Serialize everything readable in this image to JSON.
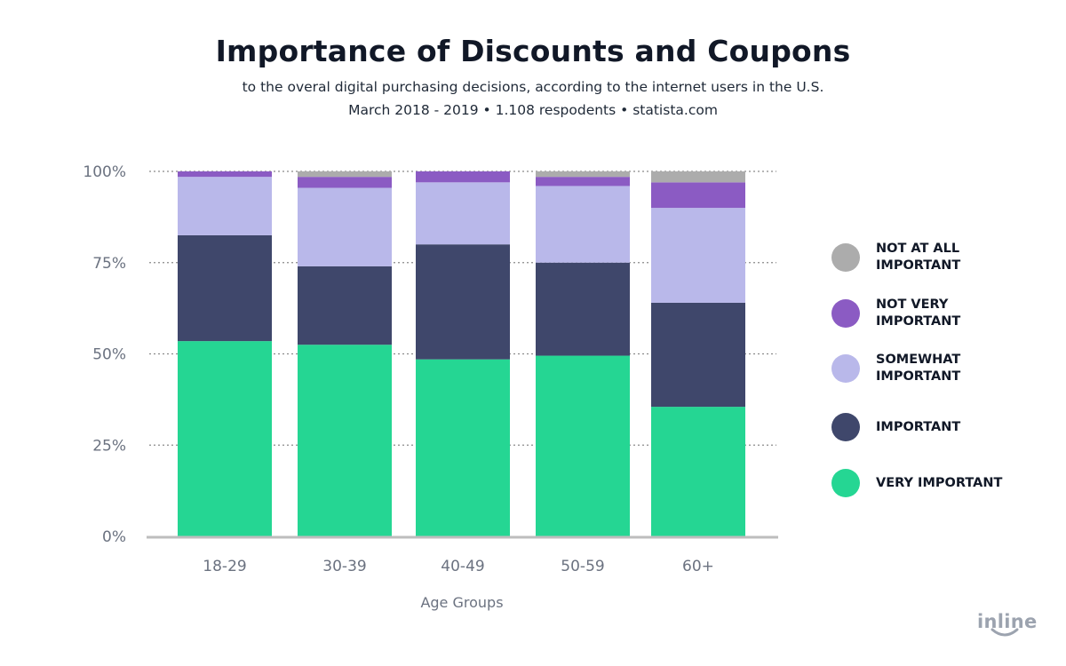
{
  "header": {
    "title": "Importance of Discounts and Coupons",
    "subtitle": "to the overal digital purchasing decisions, according to the internet users in the U.S.",
    "source": "March 2018 - 2019 • 1.108 respodents • statista.com"
  },
  "logo": {
    "text": "inline"
  },
  "colors": {
    "not_at_all_important": "#acacac",
    "not_very_important": "#8b5bc3",
    "somewhat_important": "#b9b8ea",
    "important": "#3f476b",
    "very_important": "#25d693",
    "grid": "#8a8a8a",
    "axis": "#bdbdbd",
    "tick_text": "#6b7280"
  },
  "chart_data": {
    "type": "bar",
    "stacked": true,
    "title": "Importance of Discounts and Coupons",
    "subtitle": "to the overal digital purchasing decisions, according to the internet users in the U.S.",
    "xlabel": "Age Groups",
    "ylabel": "",
    "categories": [
      "18-29",
      "30-39",
      "40-49",
      "50-59",
      "60+"
    ],
    "yticks": [
      "0%",
      "25%",
      "50%",
      "75%",
      "100%"
    ],
    "ylim": [
      0,
      100
    ],
    "grid": true,
    "legend_position": "right",
    "series": [
      {
        "key": "very_important",
        "name": "VERY IMPORTANT",
        "values": [
          53.5,
          52.5,
          48.5,
          49.5,
          35.5
        ]
      },
      {
        "key": "important",
        "name": "IMPORTANT",
        "values": [
          29,
          21.5,
          31.5,
          25.5,
          28.5
        ]
      },
      {
        "key": "somewhat_important",
        "name": "SOMEWHAT\nIMPORTANT",
        "values": [
          16,
          21.5,
          17,
          21,
          26
        ]
      },
      {
        "key": "not_very_important",
        "name": "NOT VERY\nIMPORTANT",
        "values": [
          1.5,
          3,
          3,
          2.5,
          7
        ]
      },
      {
        "key": "not_at_all_important",
        "name": "NOT AT ALL\nIMPORTANT",
        "values": [
          0,
          1.5,
          0,
          1.5,
          3
        ]
      }
    ],
    "legend_order": [
      "not_at_all_important",
      "not_very_important",
      "somewhat_important",
      "important",
      "very_important"
    ]
  }
}
